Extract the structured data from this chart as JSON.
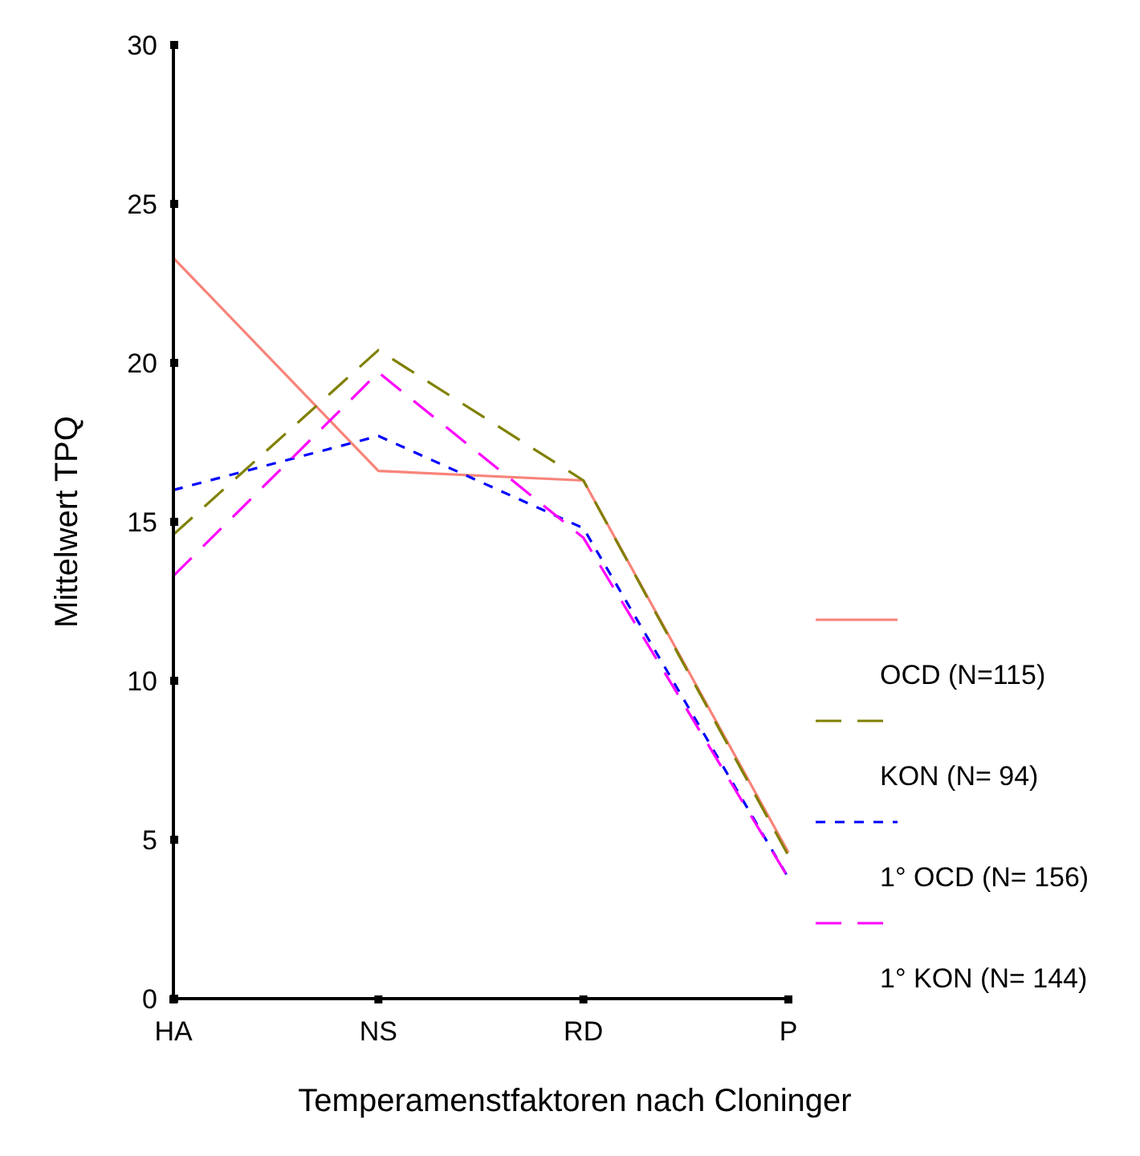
{
  "chart_data": {
    "type": "line",
    "xlabel": "Temperamenstfaktoren nach Cloninger",
    "ylabel": "Mittelwert TPQ",
    "categories": [
      "HA",
      "NS",
      "RD",
      "P"
    ],
    "ylim": [
      0,
      30
    ],
    "yticks": [
      0,
      5,
      10,
      15,
      20,
      25,
      30
    ],
    "grid": false,
    "legend": "right",
    "marker": "none",
    "series": [
      {
        "name": "OCD (N=115)",
        "color": "#f88379",
        "line_style": "solid",
        "values": [
          23.3,
          16.6,
          16.3,
          4.6
        ]
      },
      {
        "name": "KON (N= 94)",
        "color": "#808000",
        "line_style": "dashed",
        "values": [
          14.6,
          20.4,
          16.3,
          4.5
        ]
      },
      {
        "name": "1° OCD (N= 156)",
        "color": "#0000ff",
        "line_style": "dotted",
        "values": [
          16.0,
          17.7,
          14.8,
          3.8
        ]
      },
      {
        "name": "1° KON (N= 144)",
        "color": "#ff00ff",
        "line_style": "dashed",
        "values": [
          13.3,
          19.7,
          14.5,
          3.8
        ]
      }
    ]
  }
}
